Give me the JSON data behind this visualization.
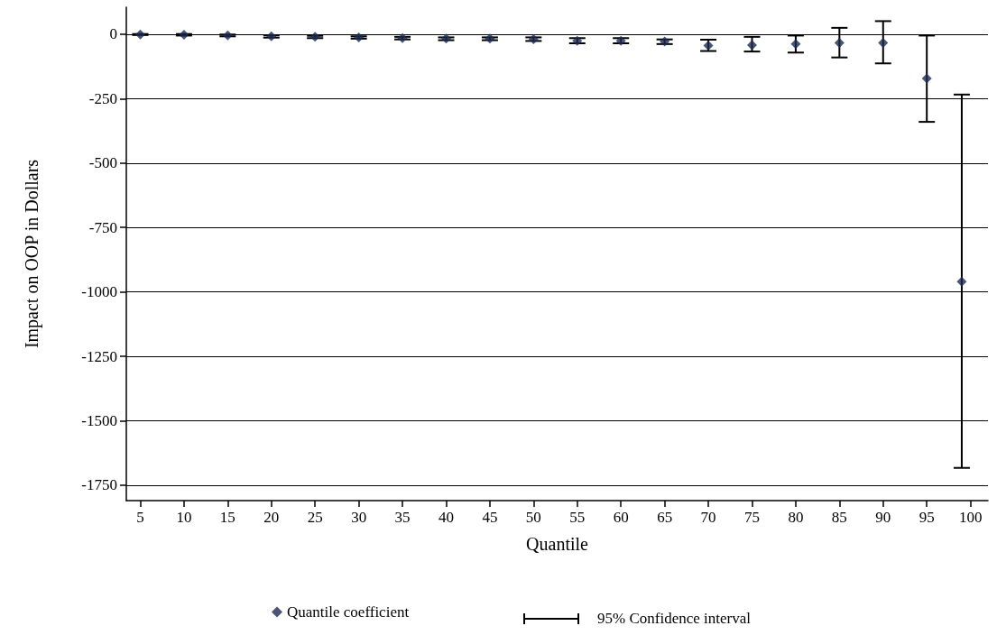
{
  "chart_data": {
    "type": "scatter",
    "xlabel": "Quantile",
    "ylabel": "Impact on OOP in Dollars",
    "x": [
      5,
      10,
      15,
      20,
      25,
      30,
      35,
      40,
      45,
      50,
      55,
      60,
      65,
      70,
      75,
      80,
      85,
      90,
      95,
      99
    ],
    "series": [
      {
        "name": "Quantile coefficient",
        "color": "#1c2b52",
        "values": [
          -1,
          -2,
          -4,
          -8,
          -10,
          -12,
          -15,
          -17,
          -17,
          -19,
          -25,
          -25,
          -28,
          -44,
          -42,
          -38,
          -33,
          -33,
          -172,
          -960
        ],
        "errors": [
          [
            -3,
            1
          ],
          [
            -5,
            1
          ],
          [
            -8,
            -1
          ],
          [
            -13,
            -4
          ],
          [
            -15,
            -6
          ],
          [
            -17,
            -8
          ],
          [
            -20,
            -10
          ],
          [
            -23,
            -12
          ],
          [
            -23,
            -12
          ],
          [
            -26,
            -12
          ],
          [
            -35,
            -15
          ],
          [
            -35,
            -15
          ],
          [
            -38,
            -20
          ],
          [
            -65,
            -21
          ],
          [
            -67,
            -10
          ],
          [
            -71,
            -5
          ],
          [
            -90,
            25
          ],
          [
            -113,
            51
          ],
          [
            -340,
            -5
          ],
          [
            -1683,
            -234
          ]
        ]
      }
    ],
    "annotations": [
      "95% Confidence interval"
    ],
    "xlim": [
      3.4,
      102
    ],
    "xticks": [
      5,
      10,
      15,
      20,
      25,
      30,
      35,
      40,
      45,
      50,
      55,
      60,
      65,
      70,
      75,
      80,
      85,
      90,
      95,
      100
    ],
    "ylim": [
      -1810,
      105
    ],
    "yticks": [
      0,
      -250,
      -500,
      -750,
      -1000,
      -1250,
      -1500,
      -1750
    ],
    "grid": "y",
    "legend": "bottom",
    "marker": "diamond"
  }
}
